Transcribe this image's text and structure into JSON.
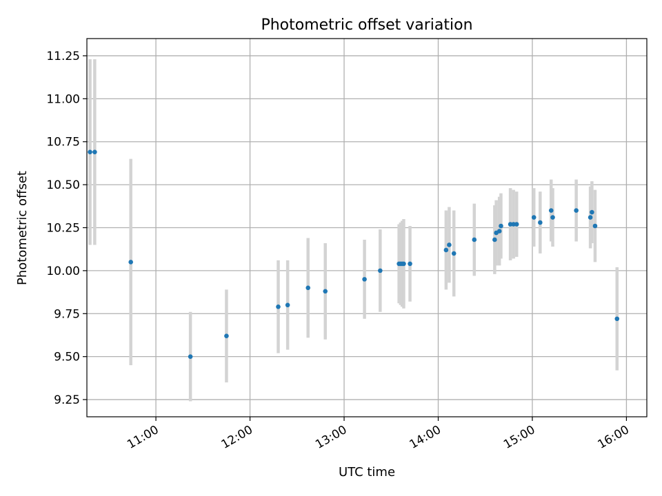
{
  "chart_data": {
    "type": "scatter",
    "title": "Photometric offset variation",
    "xlabel": "UTC time",
    "ylabel": "Photometric offset",
    "xlim": [
      "10:16",
      "16:13"
    ],
    "ylim": [
      9.15,
      11.35
    ],
    "grid": true,
    "x_ticks": [
      "11:00",
      "12:00",
      "13:00",
      "14:00",
      "15:00",
      "16:00"
    ],
    "y_ticks": [
      "9.25",
      "9.50",
      "9.75",
      "10.00",
      "10.25",
      "10.50",
      "10.75",
      "11.00",
      "11.25"
    ],
    "point_color": "#1f77b4",
    "errorbar_color": "#d3d3d3",
    "points": [
      {
        "x": "10:18",
        "y": 10.69,
        "err": 0.54
      },
      {
        "x": "10:21",
        "y": 10.69,
        "err": 0.54
      },
      {
        "x": "10:44",
        "y": 10.05,
        "err": 0.6
      },
      {
        "x": "11:22",
        "y": 9.5,
        "err": 0.26
      },
      {
        "x": "11:45",
        "y": 9.62,
        "err": 0.27
      },
      {
        "x": "12:18",
        "y": 9.79,
        "err": 0.27
      },
      {
        "x": "12:24",
        "y": 9.8,
        "err": 0.26
      },
      {
        "x": "12:37",
        "y": 9.9,
        "err": 0.29
      },
      {
        "x": "12:48",
        "y": 9.88,
        "err": 0.28
      },
      {
        "x": "13:13",
        "y": 9.95,
        "err": 0.23
      },
      {
        "x": "13:23",
        "y": 10.0,
        "err": 0.24
      },
      {
        "x": "13:35",
        "y": 10.04,
        "err": 0.23
      },
      {
        "x": "13:36",
        "y": 10.04,
        "err": 0.24
      },
      {
        "x": "13:37",
        "y": 10.04,
        "err": 0.25
      },
      {
        "x": "13:38",
        "y": 10.04,
        "err": 0.26
      },
      {
        "x": "13:42",
        "y": 10.04,
        "err": 0.22
      },
      {
        "x": "14:05",
        "y": 10.12,
        "err": 0.23
      },
      {
        "x": "14:07",
        "y": 10.15,
        "err": 0.22
      },
      {
        "x": "14:10",
        "y": 10.1,
        "err": 0.25
      },
      {
        "x": "14:23",
        "y": 10.18,
        "err": 0.21
      },
      {
        "x": "14:36",
        "y": 10.18,
        "err": 0.2
      },
      {
        "x": "14:37",
        "y": 10.22,
        "err": 0.19
      },
      {
        "x": "14:39",
        "y": 10.23,
        "err": 0.2
      },
      {
        "x": "14:40",
        "y": 10.26,
        "err": 0.19
      },
      {
        "x": "14:46",
        "y": 10.27,
        "err": 0.21
      },
      {
        "x": "14:48",
        "y": 10.27,
        "err": 0.2
      },
      {
        "x": "14:50",
        "y": 10.27,
        "err": 0.19
      },
      {
        "x": "15:01",
        "y": 10.31,
        "err": 0.17
      },
      {
        "x": "15:05",
        "y": 10.28,
        "err": 0.18
      },
      {
        "x": "15:12",
        "y": 10.35,
        "err": 0.18
      },
      {
        "x": "15:13",
        "y": 10.31,
        "err": 0.17
      },
      {
        "x": "15:28",
        "y": 10.35,
        "err": 0.18
      },
      {
        "x": "15:37",
        "y": 10.31,
        "err": 0.18
      },
      {
        "x": "15:38",
        "y": 10.34,
        "err": 0.18
      },
      {
        "x": "15:40",
        "y": 10.26,
        "err": 0.21
      },
      {
        "x": "15:54",
        "y": 9.72,
        "err": 0.3
      }
    ]
  }
}
